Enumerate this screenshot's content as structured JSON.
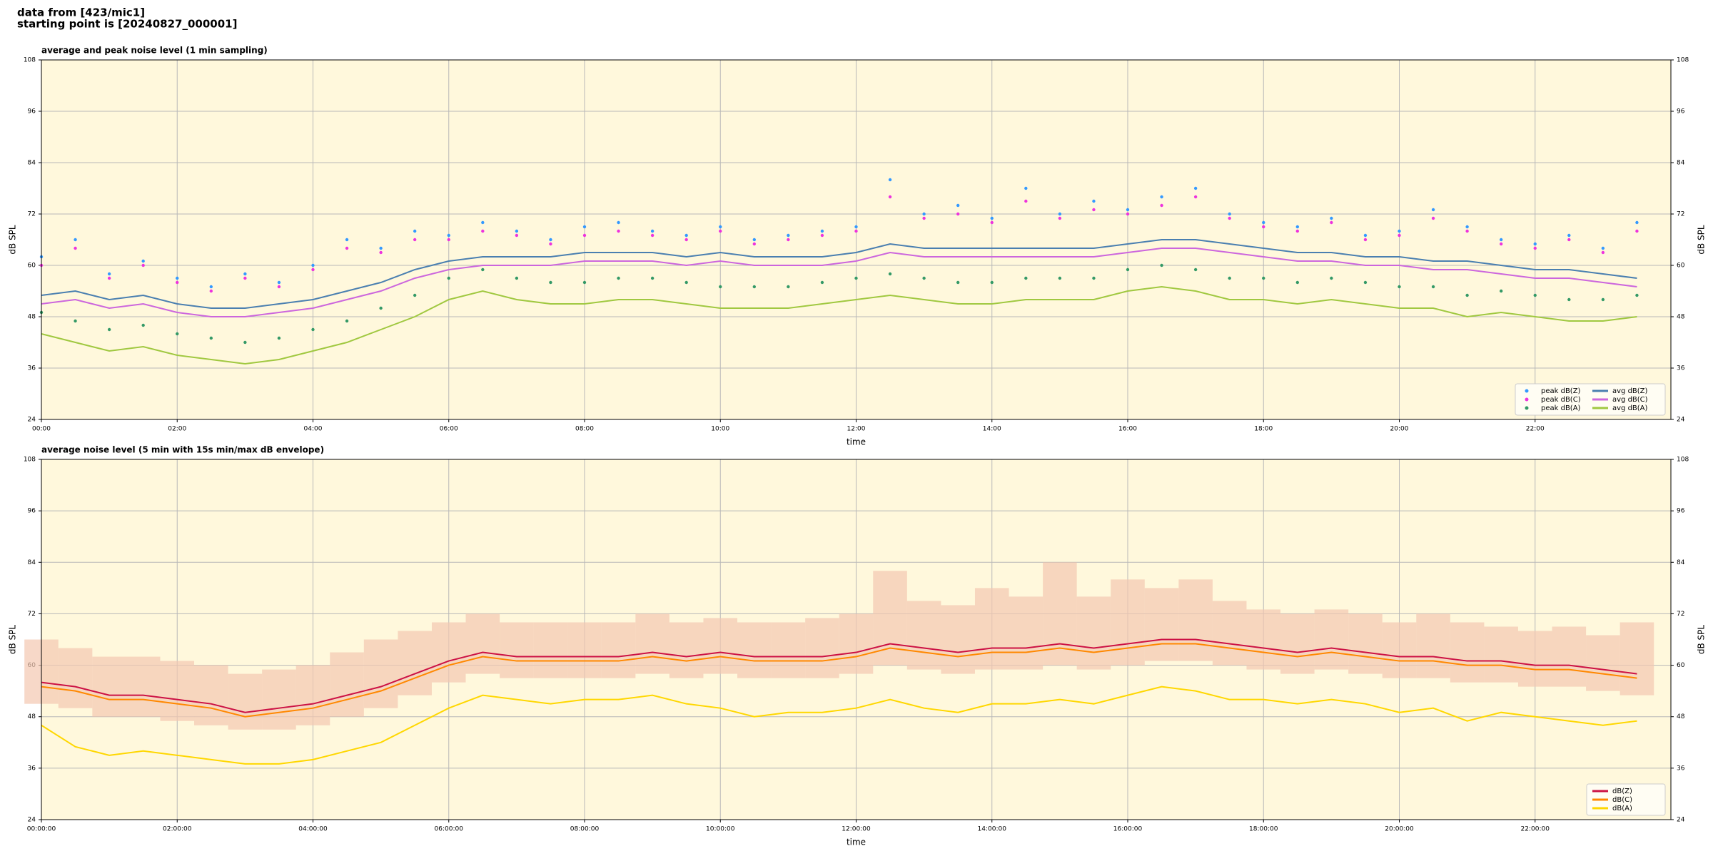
{
  "header": {
    "line1": "data from [423/mic1]",
    "line2": "starting point is [20240827_000001]"
  },
  "chart_data": [
    {
      "type": "line",
      "title": "average and peak noise level (1 min sampling)",
      "x_label": "time",
      "y_label": "dB SPL",
      "background": "#fff8dc",
      "grid": true,
      "legend": "lower right",
      "legend_columns": 2,
      "xlim": [
        0,
        24
      ],
      "ylim": [
        24,
        108
      ],
      "yticks": [
        24,
        36,
        48,
        60,
        72,
        84,
        96,
        108
      ],
      "xticks": [
        {
          "value": 0,
          "label": "00:00"
        },
        {
          "value": 2,
          "label": "02:00"
        },
        {
          "value": 4,
          "label": "04:00"
        },
        {
          "value": 6,
          "label": "06:00"
        },
        {
          "value": 8,
          "label": "08:00"
        },
        {
          "value": 10,
          "label": "10:00"
        },
        {
          "value": 12,
          "label": "12:00"
        },
        {
          "value": 14,
          "label": "14:00"
        },
        {
          "value": 16,
          "label": "16:00"
        },
        {
          "value": 18,
          "label": "18:00"
        },
        {
          "value": 20,
          "label": "20:00"
        },
        {
          "value": 22,
          "label": "22:00"
        }
      ],
      "x": [
        0,
        0.5,
        1,
        1.5,
        2,
        2.5,
        3,
        3.5,
        4,
        4.5,
        5,
        5.5,
        6,
        6.5,
        7,
        7.5,
        8,
        8.5,
        9,
        9.5,
        10,
        10.5,
        11,
        11.5,
        12,
        12.5,
        13,
        13.5,
        14,
        14.5,
        15,
        15.5,
        16,
        16.5,
        17,
        17.5,
        18,
        18.5,
        19,
        19.5,
        20,
        20.5,
        21,
        21.5,
        22,
        22.5,
        23,
        23.5
      ],
      "series": [
        {
          "name": "peak dB(Z)",
          "mark": "scatter",
          "color": "#3399ff",
          "values": [
            62,
            66,
            58,
            61,
            57,
            55,
            58,
            56,
            60,
            66,
            64,
            68,
            67,
            70,
            68,
            66,
            69,
            70,
            68,
            67,
            69,
            66,
            67,
            68,
            69,
            80,
            72,
            74,
            71,
            78,
            72,
            75,
            73,
            76,
            78,
            72,
            70,
            69,
            71,
            67,
            68,
            73,
            69,
            66,
            65,
            67,
            64,
            70
          ]
        },
        {
          "name": "peak dB(C)",
          "mark": "scatter",
          "color": "#ee33dd",
          "values": [
            60,
            64,
            57,
            60,
            56,
            54,
            57,
            55,
            59,
            64,
            63,
            66,
            66,
            68,
            67,
            65,
            67,
            68,
            67,
            66,
            68,
            65,
            66,
            67,
            68,
            76,
            71,
            72,
            70,
            75,
            71,
            73,
            72,
            74,
            76,
            71,
            69,
            68,
            70,
            66,
            67,
            71,
            68,
            65,
            64,
            66,
            63,
            68
          ]
        },
        {
          "name": "peak dB(A)",
          "mark": "scatter",
          "color": "#339966",
          "values": [
            49,
            47,
            45,
            46,
            44,
            43,
            42,
            43,
            45,
            47,
            50,
            53,
            57,
            59,
            57,
            56,
            56,
            57,
            57,
            56,
            55,
            55,
            55,
            56,
            57,
            58,
            57,
            56,
            56,
            57,
            57,
            57,
            59,
            60,
            59,
            57,
            57,
            56,
            57,
            56,
            55,
            55,
            53,
            54,
            53,
            52,
            52,
            53
          ]
        },
        {
          "name": "avg dB(Z)",
          "mark": "line",
          "color": "#4a7fb0",
          "values": [
            53,
            54,
            52,
            53,
            51,
            50,
            50,
            51,
            52,
            54,
            56,
            59,
            61,
            62,
            62,
            62,
            63,
            63,
            63,
            62,
            63,
            62,
            62,
            62,
            63,
            65,
            64,
            64,
            64,
            64,
            64,
            64,
            65,
            66,
            66,
            65,
            64,
            63,
            63,
            62,
            62,
            61,
            61,
            60,
            59,
            59,
            58,
            57
          ]
        },
        {
          "name": "avg dB(C)",
          "mark": "line",
          "color": "#cc66dd",
          "values": [
            51,
            52,
            50,
            51,
            49,
            48,
            48,
            49,
            50,
            52,
            54,
            57,
            59,
            60,
            60,
            60,
            61,
            61,
            61,
            60,
            61,
            60,
            60,
            60,
            61,
            63,
            62,
            62,
            62,
            62,
            62,
            62,
            63,
            64,
            64,
            63,
            62,
            61,
            61,
            60,
            60,
            59,
            59,
            58,
            57,
            57,
            56,
            55
          ]
        },
        {
          "name": "avg dB(A)",
          "mark": "line",
          "color": "#a0c840",
          "values": [
            44,
            42,
            40,
            41,
            39,
            38,
            37,
            38,
            40,
            42,
            45,
            48,
            52,
            54,
            52,
            51,
            51,
            52,
            52,
            51,
            50,
            50,
            50,
            51,
            52,
            53,
            52,
            51,
            51,
            52,
            52,
            52,
            54,
            55,
            54,
            52,
            52,
            51,
            52,
            51,
            50,
            50,
            48,
            49,
            48,
            47,
            47,
            48
          ]
        }
      ]
    },
    {
      "type": "line",
      "title": "average noise level (5 min with 15s min/max dB envelope)",
      "x_label": "time",
      "y_label": "dB SPL",
      "background": "#fff8dc",
      "grid": true,
      "legend": "lower right",
      "legend_columns": 1,
      "xlim": [
        0,
        24
      ],
      "ylim": [
        24,
        108
      ],
      "yticks": [
        24,
        36,
        48,
        60,
        72,
        84,
        96,
        108
      ],
      "xticks": [
        {
          "value": 0,
          "label": "00:00:00"
        },
        {
          "value": 2,
          "label": "02:00:00"
        },
        {
          "value": 4,
          "label": "04:00:00"
        },
        {
          "value": 6,
          "label": "06:00:00"
        },
        {
          "value": 8,
          "label": "08:00:00"
        },
        {
          "value": 10,
          "label": "10:00:00"
        },
        {
          "value": 12,
          "label": "12:00:00"
        },
        {
          "value": 14,
          "label": "14:00:00"
        },
        {
          "value": 16,
          "label": "16:00:00"
        },
        {
          "value": 18,
          "label": "18:00:00"
        },
        {
          "value": 20,
          "label": "20:00:00"
        },
        {
          "value": 22,
          "label": "22:00:00"
        }
      ],
      "x": [
        0,
        0.5,
        1,
        1.5,
        2,
        2.5,
        3,
        3.5,
        4,
        4.5,
        5,
        5.5,
        6,
        6.5,
        7,
        7.5,
        8,
        8.5,
        9,
        9.5,
        10,
        10.5,
        11,
        11.5,
        12,
        12.5,
        13,
        13.5,
        14,
        14.5,
        15,
        15.5,
        16,
        16.5,
        17,
        17.5,
        18,
        18.5,
        19,
        19.5,
        20,
        20.5,
        21,
        21.5,
        22,
        22.5,
        23,
        23.5
      ],
      "envelope": {
        "color": "#f4c8b0",
        "max": [
          66,
          64,
          62,
          62,
          61,
          60,
          58,
          59,
          60,
          63,
          66,
          68,
          70,
          72,
          70,
          70,
          70,
          70,
          72,
          70,
          71,
          70,
          70,
          71,
          72,
          82,
          75,
          74,
          78,
          76,
          84,
          76,
          80,
          78,
          80,
          75,
          73,
          72,
          73,
          72,
          70,
          72,
          70,
          69,
          68,
          69,
          67,
          70
        ],
        "min": [
          51,
          50,
          48,
          48,
          47,
          46,
          45,
          45,
          46,
          48,
          50,
          53,
          56,
          58,
          57,
          57,
          57,
          57,
          58,
          57,
          58,
          57,
          57,
          57,
          58,
          60,
          59,
          58,
          59,
          59,
          60,
          59,
          60,
          61,
          61,
          60,
          59,
          58,
          59,
          58,
          57,
          57,
          56,
          56,
          55,
          55,
          54,
          53
        ]
      },
      "series": [
        {
          "name": "dB(Z)",
          "mark": "line",
          "color": "#cc1144",
          "values": [
            56,
            55,
            53,
            53,
            52,
            51,
            49,
            50,
            51,
            53,
            55,
            58,
            61,
            63,
            62,
            62,
            62,
            62,
            63,
            62,
            63,
            62,
            62,
            62,
            63,
            65,
            64,
            63,
            64,
            64,
            65,
            64,
            65,
            66,
            66,
            65,
            64,
            63,
            64,
            63,
            62,
            62,
            61,
            61,
            60,
            60,
            59,
            58
          ]
        },
        {
          "name": "dB(C)",
          "mark": "line",
          "color": "#ff8800",
          "values": [
            55,
            54,
            52,
            52,
            51,
            50,
            48,
            49,
            50,
            52,
            54,
            57,
            60,
            62,
            61,
            61,
            61,
            61,
            62,
            61,
            62,
            61,
            61,
            61,
            62,
            64,
            63,
            62,
            63,
            63,
            64,
            63,
            64,
            65,
            65,
            64,
            63,
            62,
            63,
            62,
            61,
            61,
            60,
            60,
            59,
            59,
            58,
            57
          ]
        },
        {
          "name": "dB(A)",
          "mark": "line",
          "color": "#ffd700",
          "values": [
            46,
            41,
            39,
            40,
            39,
            38,
            37,
            37,
            38,
            40,
            42,
            46,
            50,
            53,
            52,
            51,
            52,
            52,
            53,
            51,
            50,
            48,
            49,
            49,
            50,
            52,
            50,
            49,
            51,
            51,
            52,
            51,
            53,
            55,
            54,
            52,
            52,
            51,
            52,
            51,
            49,
            50,
            47,
            49,
            48,
            47,
            46,
            47
          ]
        }
      ]
    }
  ]
}
